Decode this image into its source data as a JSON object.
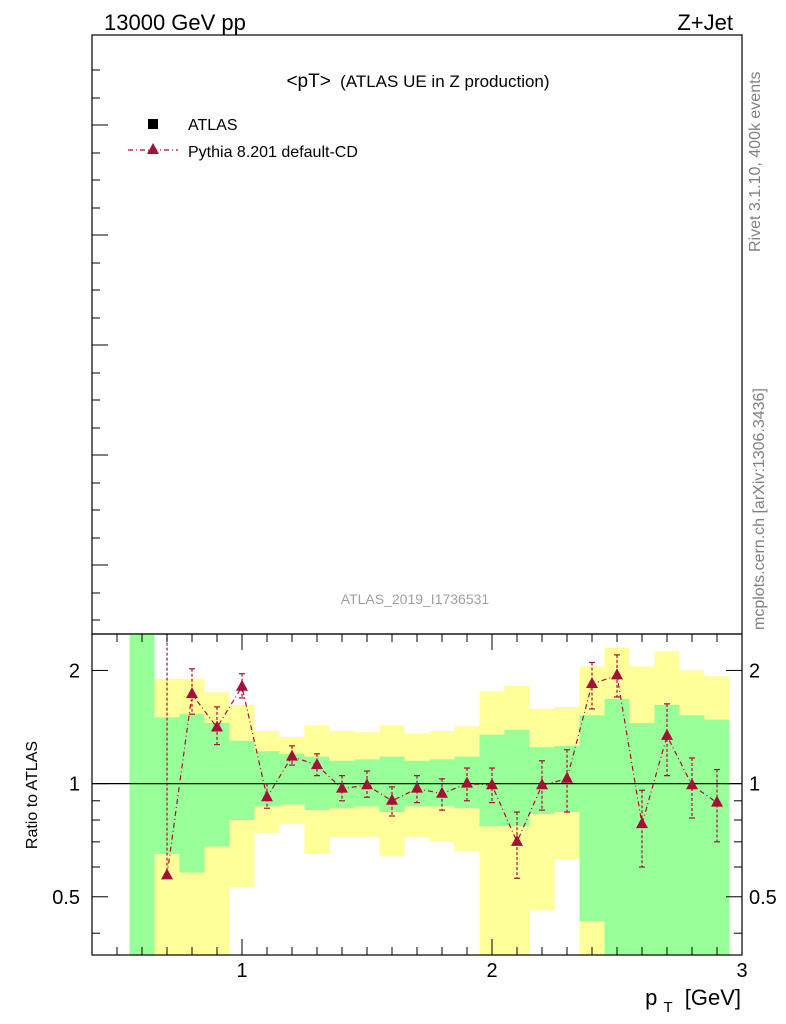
{
  "header": {
    "left": "13000 GeV pp",
    "right": "Z+Jet"
  },
  "side": {
    "rivet": "Rivet 3.1.10,  400k events",
    "mcplots": "mcplots.cern.ch [arXiv:1306.3436]"
  },
  "main_panel": {
    "title_main": "<pT>",
    "title_sub": "(ATLAS UE in Z production)",
    "watermark": "ATLAS_2019_I1736531"
  },
  "legend": {
    "data_label": "ATLAS",
    "mc_label": "Pythia 8.201 default-CD"
  },
  "colors": {
    "mc": "#a50f38",
    "band_inner": "#99ff99",
    "band_outer": "#ffff99",
    "data": "#000000"
  },
  "chart_data": {
    "type": "line",
    "xlabel_main": "p",
    "xlabel_sub": "T",
    "xlabel_unit": "[GeV]",
    "ylabel": "Ratio to ATLAS",
    "xlim": [
      0.4,
      3.0
    ],
    "ylim_log": [
      0.35,
      2.5
    ],
    "y_scale": "log",
    "x_ticks": [
      1,
      2,
      3
    ],
    "x_tick_labels": [
      "1",
      "2",
      "3"
    ],
    "y_ticks": [
      0.5,
      1,
      2
    ],
    "y_tick_labels": [
      "0.5",
      "1",
      "2"
    ],
    "reference_line": 1,
    "bands": [
      {
        "x0": 0.55,
        "x1": 0.65,
        "inner": [
          0.3,
          2.6
        ],
        "outer": [
          0.3,
          2.6
        ]
      },
      {
        "x0": 0.65,
        "x1": 0.75,
        "inner": [
          0.65,
          1.5
        ],
        "outer": [
          0.3,
          1.9
        ]
      },
      {
        "x0": 0.75,
        "x1": 0.85,
        "inner": [
          0.58,
          1.53
        ],
        "outer": [
          0.3,
          1.9
        ]
      },
      {
        "x0": 0.85,
        "x1": 0.95,
        "inner": [
          0.68,
          1.45
        ],
        "outer": [
          0.3,
          1.75
        ]
      },
      {
        "x0": 0.95,
        "x1": 1.05,
        "inner": [
          0.8,
          1.3
        ],
        "outer": [
          0.53,
          1.62
        ]
      },
      {
        "x0": 1.05,
        "x1": 1.15,
        "inner": [
          0.87,
          1.22
        ],
        "outer": [
          0.74,
          1.38
        ]
      },
      {
        "x0": 1.15,
        "x1": 1.25,
        "inner": [
          0.88,
          1.2
        ],
        "outer": [
          0.78,
          1.33
        ]
      },
      {
        "x0": 1.25,
        "x1": 1.35,
        "inner": [
          0.85,
          1.18
        ],
        "outer": [
          0.65,
          1.43
        ]
      },
      {
        "x0": 1.35,
        "x1": 1.45,
        "inner": [
          0.86,
          1.15
        ],
        "outer": [
          0.72,
          1.38
        ]
      },
      {
        "x0": 1.45,
        "x1": 1.55,
        "inner": [
          0.87,
          1.16
        ],
        "outer": [
          0.72,
          1.37
        ]
      },
      {
        "x0": 1.55,
        "x1": 1.65,
        "inner": [
          0.84,
          1.18
        ],
        "outer": [
          0.64,
          1.43
        ]
      },
      {
        "x0": 1.65,
        "x1": 1.75,
        "inner": [
          0.87,
          1.15
        ],
        "outer": [
          0.72,
          1.36
        ]
      },
      {
        "x0": 1.75,
        "x1": 1.85,
        "inner": [
          0.87,
          1.16
        ],
        "outer": [
          0.7,
          1.38
        ]
      },
      {
        "x0": 1.85,
        "x1": 1.95,
        "inner": [
          0.86,
          1.18
        ],
        "outer": [
          0.66,
          1.42
        ]
      },
      {
        "x0": 1.95,
        "x1": 2.05,
        "inner": [
          0.77,
          1.35
        ],
        "outer": [
          0.3,
          1.76
        ]
      },
      {
        "x0": 2.05,
        "x1": 2.15,
        "inner": [
          0.77,
          1.39
        ],
        "outer": [
          0.3,
          1.82
        ]
      },
      {
        "x0": 2.15,
        "x1": 2.25,
        "inner": [
          0.83,
          1.25
        ],
        "outer": [
          0.46,
          1.58
        ]
      },
      {
        "x0": 2.25,
        "x1": 2.35,
        "inner": [
          0.84,
          1.26
        ],
        "outer": [
          0.63,
          1.6
        ]
      },
      {
        "x0": 2.35,
        "x1": 2.45,
        "inner": [
          0.43,
          1.52
        ],
        "outer": [
          0.3,
          2.05
        ]
      },
      {
        "x0": 2.45,
        "x1": 2.55,
        "inner": [
          0.3,
          1.68
        ],
        "outer": [
          0.3,
          2.3
        ]
      },
      {
        "x0": 2.55,
        "x1": 2.65,
        "inner": [
          0.3,
          1.45
        ],
        "outer": [
          0.65,
          2.05
        ]
      },
      {
        "x0": 2.65,
        "x1": 2.75,
        "inner": [
          0.3,
          1.62
        ],
        "outer": [
          0.3,
          2.25
        ]
      },
      {
        "x0": 2.75,
        "x1": 2.85,
        "inner": [
          0.3,
          1.52
        ],
        "outer": [
          0.43,
          2.0
        ]
      },
      {
        "x0": 2.85,
        "x1": 2.95,
        "inner": [
          0.3,
          1.48
        ],
        "outer": [
          0.55,
          1.93
        ]
      }
    ],
    "series": [
      {
        "name": "Pythia 8.201 default-CD",
        "x": [
          0.7,
          0.8,
          0.9,
          1.0,
          1.1,
          1.2,
          1.3,
          1.4,
          1.5,
          1.6,
          1.7,
          1.8,
          1.9,
          2.0,
          2.1,
          2.2,
          2.3,
          2.4,
          2.5,
          2.6,
          2.7,
          2.8,
          2.9
        ],
        "y": [
          0.57,
          1.73,
          1.41,
          1.81,
          0.92,
          1.18,
          1.12,
          0.97,
          0.99,
          0.9,
          0.97,
          0.94,
          1.0,
          0.99,
          0.7,
          0.99,
          1.03,
          1.84,
          1.94,
          0.78,
          1.34,
          0.99,
          0.89
        ],
        "err_lo": [
          0.57,
          1.53,
          1.27,
          1.69,
          0.86,
          1.12,
          1.05,
          0.9,
          0.92,
          0.82,
          0.89,
          0.85,
          0.9,
          0.89,
          0.56,
          0.85,
          0.84,
          1.58,
          1.7,
          0.6,
          1.05,
          0.81,
          0.7
        ],
        "err_hi": [
          2.6,
          2.02,
          1.6,
          1.96,
          1.0,
          1.26,
          1.2,
          1.05,
          1.08,
          0.98,
          1.05,
          1.03,
          1.1,
          1.1,
          0.84,
          1.15,
          1.23,
          2.1,
          2.2,
          0.96,
          1.63,
          1.17,
          1.09
        ]
      }
    ]
  }
}
